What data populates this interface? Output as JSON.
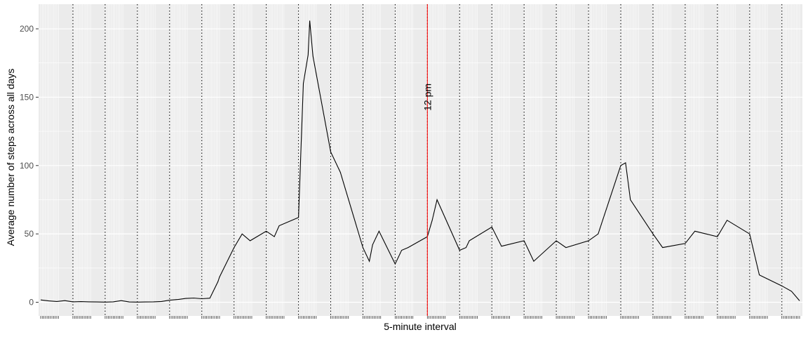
{
  "chart_data": {
    "type": "line",
    "title": "",
    "xlabel": "5-minute interval",
    "ylabel": "Average number of steps across all days",
    "x_tick_labels": "none",
    "xlim": [
      0,
      2355
    ],
    "ylim": [
      -10,
      218
    ],
    "y_ticks": [
      0,
      50,
      100,
      150,
      200
    ],
    "grid": true,
    "background": "#EBEBEB",
    "line_color": "#000000",
    "series": [
      {
        "x": [
          0,
          25,
          50,
          75,
          100,
          125,
          150,
          175,
          200,
          225,
          250,
          275,
          300,
          325,
          350,
          375,
          400,
          425,
          450,
          475,
          500,
          525,
          550,
          555,
          600,
          625,
          650,
          700,
          725,
          740,
          800,
          815,
          830,
          835,
          845,
          900,
          930,
          1000,
          1020,
          1030,
          1050,
          1100,
          1120,
          1140,
          1200,
          1215,
          1230,
          1300,
          1320,
          1330,
          1400,
          1430,
          1500,
          1530,
          1600,
          1630,
          1700,
          1730,
          1800,
          1815,
          1830,
          1900,
          1930,
          2000,
          2030,
          2100,
          2130,
          2200,
          2230,
          2300,
          2330,
          2355
        ],
        "values": [
          1.7,
          1.0,
          0.6,
          1.2,
          0.3,
          0.5,
          0.3,
          0.2,
          0.1,
          0.3,
          1.2,
          0.2,
          0.1,
          0.2,
          0.3,
          0.6,
          1.5,
          2.0,
          2.8,
          3.1,
          2.6,
          3.0,
          15,
          18.5,
          40,
          50,
          45,
          52,
          48,
          56,
          62,
          160,
          181,
          206,
          180,
          110,
          95,
          40,
          30,
          42,
          52,
          28,
          38,
          40,
          48,
          60,
          75,
          38,
          40,
          45,
          55,
          41,
          45,
          30,
          45,
          40,
          45,
          50,
          100,
          102,
          75,
          50,
          40,
          43,
          52,
          48,
          60,
          50,
          20,
          12,
          8,
          1.1
        ]
      }
    ],
    "vlines_dotted": [
      100,
      200,
      300,
      400,
      500,
      600,
      700,
      800,
      900,
      1000,
      1100,
      1200,
      1300,
      1400,
      1500,
      1600,
      1700,
      1800,
      1900,
      2000,
      2100,
      2200,
      2300
    ],
    "vline_highlight": {
      "x": 1200,
      "color": "#FF0000",
      "label": "12 pm"
    }
  }
}
